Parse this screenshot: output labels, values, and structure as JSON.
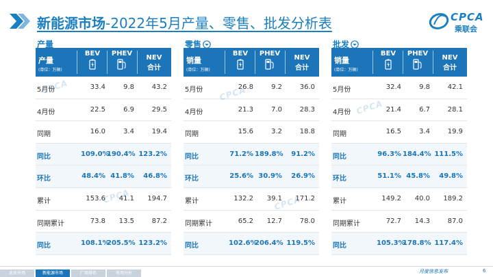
{
  "title": {
    "main": "新能源市场",
    "rest": "-2022年5月产量、零售、批发分析表"
  },
  "logo": {
    "abbr": "CPCA",
    "cn": "乘联会"
  },
  "columns": {
    "bev": "BEV",
    "phev": "PHEV",
    "nev": "NEV",
    "nev_sub": "合计"
  },
  "panels": [
    {
      "label": "产量",
      "corner": "产量",
      "unit": "(单位：万辆)",
      "has_icon": false,
      "rows": [
        {
          "label": "5月份",
          "bev": "33.4",
          "phev": "9.8",
          "nev": "43.2",
          "hl": false
        },
        {
          "label": "4月份",
          "bev": "22.5",
          "phev": "6.9",
          "nev": "29.5",
          "hl": false
        },
        {
          "label": "同期",
          "bev": "16.0",
          "phev": "3.4",
          "nev": "19.4",
          "hl": false
        },
        {
          "label": "同比",
          "bev": "109.0%",
          "phev": "190.4%",
          "nev": "123.2%",
          "hl": true
        },
        {
          "label": "环比",
          "bev": "48.4%",
          "phev": "41.8%",
          "nev": "46.8%",
          "hl": true
        },
        {
          "label": "累计",
          "bev": "153.6",
          "phev": "41.1",
          "nev": "194.7",
          "hl": false
        },
        {
          "label": "同期累计",
          "bev": "73.8",
          "phev": "13.5",
          "nev": "87.2",
          "hl": false
        },
        {
          "label": "同比",
          "bev": "108.1%",
          "phev": "205.5%",
          "nev": "123.2%",
          "hl": true
        }
      ]
    },
    {
      "label": "零售",
      "corner": "销量",
      "unit": "(单位：万辆)",
      "has_icon": true,
      "rows": [
        {
          "label": "5月份",
          "bev": "26.8",
          "phev": "9.2",
          "nev": "36.0",
          "hl": false
        },
        {
          "label": "4月份",
          "bev": "21.3",
          "phev": "7.0",
          "nev": "28.3",
          "hl": false
        },
        {
          "label": "同期",
          "bev": "15.6",
          "phev": "3.2",
          "nev": "18.8",
          "hl": false
        },
        {
          "label": "同比",
          "bev": "71.2%",
          "phev": "189.8%",
          "nev": "91.2%",
          "hl": true
        },
        {
          "label": "环比",
          "bev": "25.6%",
          "phev": "30.9%",
          "nev": "26.9%",
          "hl": true
        },
        {
          "label": "累计",
          "bev": "132.2",
          "phev": "39.1",
          "nev": "171.2",
          "hl": false
        },
        {
          "label": "同期累计",
          "bev": "65.2",
          "phev": "12.7",
          "nev": "78.0",
          "hl": false
        },
        {
          "label": "同比",
          "bev": "102.6%",
          "phev": "206.4%",
          "nev": "119.5%",
          "hl": true
        }
      ]
    },
    {
      "label": "批发",
      "corner": "销量",
      "unit": "(单位：万辆)",
      "has_icon": true,
      "rows": [
        {
          "label": "5月份",
          "bev": "32.4",
          "phev": "9.8",
          "nev": "42.1",
          "hl": false
        },
        {
          "label": "4月份",
          "bev": "21.4",
          "phev": "6.7",
          "nev": "28.1",
          "hl": false
        },
        {
          "label": "同期",
          "bev": "16.5",
          "phev": "3.4",
          "nev": "19.9",
          "hl": false
        },
        {
          "label": "同比",
          "bev": "96.3%",
          "phev": "184.4%",
          "nev": "111.5%",
          "hl": true
        },
        {
          "label": "环比",
          "bev": "51.1%",
          "phev": "45.8%",
          "nev": "49.8%",
          "hl": true
        },
        {
          "label": "累计",
          "bev": "149.2",
          "phev": "40.0",
          "nev": "189.2",
          "hl": false
        },
        {
          "label": "同期累计",
          "bev": "72.7",
          "phev": "14.3",
          "nev": "87.0",
          "hl": false
        },
        {
          "label": "同比",
          "bev": "105.3%",
          "phev": "178.8%",
          "nev": "117.4%",
          "hl": true
        }
      ]
    }
  ],
  "footer": {
    "tabs": [
      {
        "label": "总体市场",
        "active": false
      },
      {
        "label": "新能源市场",
        "active": true
      },
      {
        "label": "厂商排名",
        "active": false
      },
      {
        "label": "市场分析",
        "active": false
      }
    ],
    "text": "月度信息发布",
    "page": "6"
  },
  "colors": {
    "accent": "#1a7fc1",
    "header_bg": "#1b75b8"
  }
}
